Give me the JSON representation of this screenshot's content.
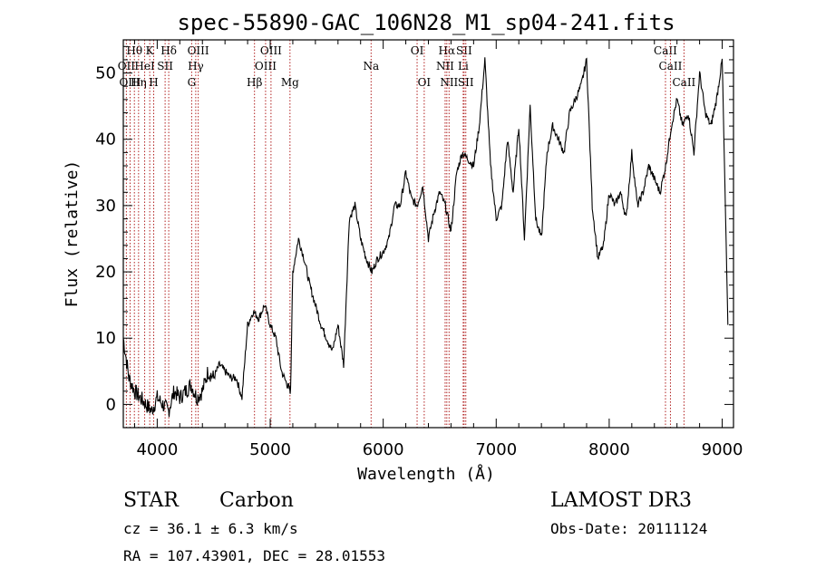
{
  "chart_data": {
    "type": "line",
    "title": "spec-55890-GAC_106N28_M1_sp04-241.fits",
    "xlabel": "Wavelength (Å)",
    "ylabel": "Flux (relative)",
    "xlim": [
      3700,
      9100
    ],
    "ylim": [
      -3.5,
      55
    ],
    "xticks": [
      4000,
      5000,
      6000,
      7000,
      8000,
      9000
    ],
    "yticks": [
      0,
      10,
      20,
      30,
      40,
      50
    ],
    "series": [
      {
        "name": "spectrum",
        "x": [
          3700,
          3750,
          3800,
          3850,
          3900,
          3950,
          4000,
          4050,
          4100,
          4150,
          4200,
          4250,
          4300,
          4350,
          4400,
          4450,
          4500,
          4550,
          4600,
          4650,
          4700,
          4750,
          4800,
          4850,
          4900,
          4950,
          5000,
          5050,
          5100,
          5150,
          5180,
          5200,
          5250,
          5300,
          5350,
          5400,
          5450,
          5500,
          5550,
          5600,
          5650,
          5700,
          5750,
          5800,
          5850,
          5900,
          5950,
          6000,
          6050,
          6100,
          6150,
          6200,
          6250,
          6300,
          6350,
          6400,
          6450,
          6500,
          6550,
          6600,
          6650,
          6700,
          6750,
          6800,
          6850,
          6900,
          6950,
          7000,
          7050,
          7100,
          7150,
          7200,
          7250,
          7300,
          7350,
          7400,
          7450,
          7500,
          7550,
          7600,
          7650,
          7700,
          7750,
          7800,
          7850,
          7900,
          7950,
          8000,
          8050,
          8100,
          8150,
          8200,
          8250,
          8300,
          8350,
          8400,
          8450,
          8500,
          8550,
          8600,
          8650,
          8700,
          8750,
          8800,
          8850,
          8900,
          8950,
          9000,
          9050
        ],
        "y": [
          10,
          4,
          2,
          1,
          0,
          -1,
          1,
          0,
          -1,
          2,
          1,
          2,
          3,
          1,
          2,
          5,
          4,
          6,
          5,
          4,
          4,
          1,
          12,
          14,
          13,
          15,
          12,
          10,
          5,
          3,
          2,
          20,
          25,
          22,
          18,
          15,
          12,
          10,
          8,
          12,
          6,
          28,
          30,
          25,
          22,
          20,
          22,
          23,
          25,
          30,
          30,
          35,
          31,
          30,
          33,
          25,
          29,
          32,
          30,
          26,
          35,
          38,
          37,
          36,
          42,
          52,
          36,
          28,
          30,
          40,
          32,
          42,
          25,
          45,
          28,
          25,
          38,
          42,
          40,
          38,
          44,
          46,
          48,
          52,
          30,
          22,
          24,
          32,
          30,
          32,
          28,
          38,
          30,
          32,
          36,
          34,
          32,
          36,
          42,
          46,
          42,
          44,
          38,
          50,
          44,
          42,
          46,
          52,
          12
        ]
      }
    ],
    "line_markers": [
      {
        "label": "Hθ",
        "wl": 3798,
        "row": 0
      },
      {
        "label": "OII",
        "wl": 3727,
        "row": 1
      },
      {
        "label": "OIII",
        "wl": 3760,
        "row": 2
      },
      {
        "label": "K",
        "wl": 3934,
        "row": 0
      },
      {
        "label": "HeI",
        "wl": 3889,
        "row": 1
      },
      {
        "label": "Hη",
        "wl": 3835,
        "row": 2
      },
      {
        "label": "SII",
        "wl": 4070,
        "row": 1
      },
      {
        "label": "H",
        "wl": 3969,
        "row": 2
      },
      {
        "label": "Hδ",
        "wl": 4102,
        "row": 0
      },
      {
        "label": "OIII",
        "wl": 4363,
        "row": 0
      },
      {
        "label": "Hγ",
        "wl": 4341,
        "row": 1
      },
      {
        "label": "G",
        "wl": 4305,
        "row": 2
      },
      {
        "label": "Hβ",
        "wl": 4861,
        "row": 2
      },
      {
        "label": "OIII",
        "wl": 5007,
        "row": 0
      },
      {
        "label": "OIII",
        "wl": 4959,
        "row": 1
      },
      {
        "label": "Mg",
        "wl": 5175,
        "row": 2
      },
      {
        "label": "Na",
        "wl": 5893,
        "row": 1
      },
      {
        "label": "OI",
        "wl": 6300,
        "row": 0
      },
      {
        "label": "OI",
        "wl": 6363,
        "row": 2
      },
      {
        "label": "Hα",
        "wl": 6563,
        "row": 0
      },
      {
        "label": "NII",
        "wl": 6548,
        "row": 1
      },
      {
        "label": "NII",
        "wl": 6583,
        "row": 2
      },
      {
        "label": "SII",
        "wl": 6716,
        "row": 0
      },
      {
        "label": "Li",
        "wl": 6708,
        "row": 1
      },
      {
        "label": "SII",
        "wl": 6731,
        "row": 2
      },
      {
        "label": "CaII",
        "wl": 8498,
        "row": 0
      },
      {
        "label": "CaII",
        "wl": 8542,
        "row": 1
      },
      {
        "label": "CaII",
        "wl": 8662,
        "row": 2
      }
    ]
  },
  "info": {
    "class": "STAR",
    "subclass": "Carbon",
    "survey": "LAMOST DR3",
    "cz": "cz = 36.1 ± 6.3 km/s",
    "obs_date": "Obs-Date: 20111124",
    "coords": "RA = 107.43901, DEC =  28.01553"
  }
}
